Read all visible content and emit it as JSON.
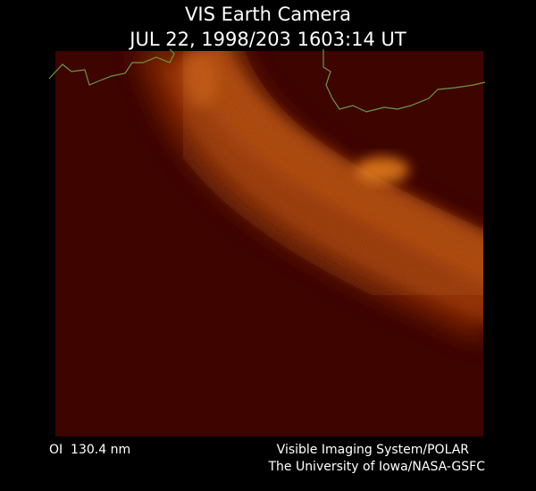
{
  "header": {
    "title": "VIS Earth Camera",
    "timestamp": "JUL 22, 1998/203 1603:14 UT"
  },
  "footer": {
    "filter": "OI  130.4 nm",
    "instrument": "Visible Imaging System/POLAR",
    "institution": "The University of Iowa/NASA-GSFC"
  }
}
